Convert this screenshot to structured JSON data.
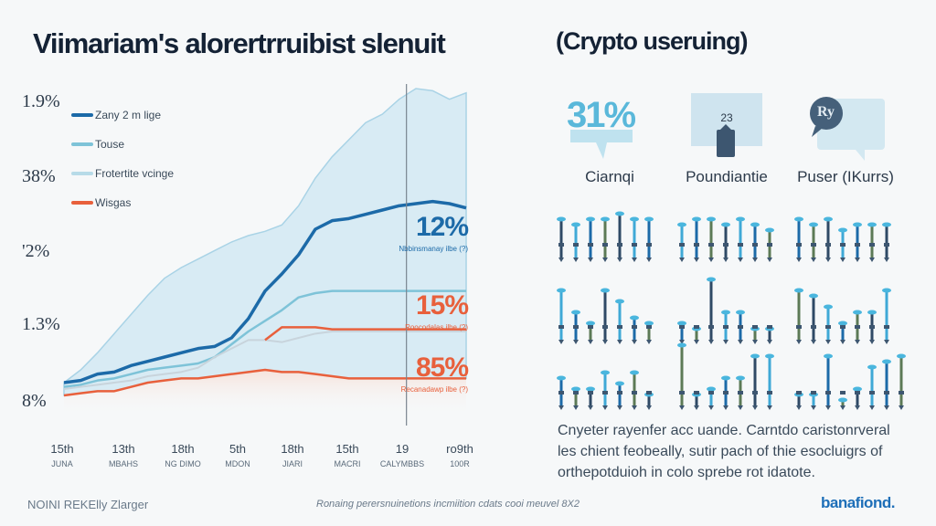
{
  "header": {
    "title": "Viimariam's alorertrruibist slenuit",
    "subtitle": "(Crypto useruing)"
  },
  "chart_data": {
    "type": "line",
    "title": "Viimariam's alorertrruibist slenuit",
    "xlabel": "",
    "ylabel": "",
    "y_tick_labels": [
      "1.9%",
      "38%",
      "'2%",
      "1.3%",
      "8%"
    ],
    "x_tick_labels": [
      {
        "day": "15th",
        "month": "JUNA"
      },
      {
        "day": "13th",
        "month": "MBAHS"
      },
      {
        "day": "18th",
        "month": "NG DIMO"
      },
      {
        "day": "5th",
        "month": "MDON"
      },
      {
        "day": "18th",
        "month": "JIARI"
      },
      {
        "day": "15th",
        "month": "MACRI"
      },
      {
        "day": "19",
        "month": "CALYMBBS"
      },
      {
        "day": "ro9th",
        "month": "100R"
      }
    ],
    "ylim": [
      0,
      100
    ],
    "grid": false,
    "legend_position": "top-left",
    "x": [
      0,
      1,
      2,
      3,
      4,
      5,
      6,
      7,
      8,
      9,
      10,
      11,
      12,
      13,
      14,
      15,
      16,
      17,
      18,
      19,
      20,
      21,
      22,
      23,
      24
    ],
    "series": [
      {
        "name": "Frotertite vcinge (band upper)",
        "color": "#a9d3e6",
        "values": [
          4,
          10,
          18,
          27,
          36,
          45,
          53,
          58,
          62,
          66,
          70,
          73,
          75,
          78,
          87,
          100,
          110,
          118,
          126,
          130,
          137,
          142,
          141,
          137,
          140
        ]
      },
      {
        "name": "Zany 2 m lige",
        "color": "#1c6aa8",
        "values": [
          4,
          5,
          8,
          9,
          12,
          14,
          16,
          18,
          20,
          21,
          25,
          34,
          47,
          55,
          64,
          76,
          80,
          81,
          83,
          85,
          87,
          88,
          89,
          88,
          86
        ]
      },
      {
        "name": "Touse",
        "color": "#7ec3d8",
        "values": [
          2,
          3,
          5,
          6,
          8,
          10,
          11,
          12,
          13,
          16,
          22,
          28,
          33,
          38,
          44,
          46,
          47,
          47,
          47,
          47,
          47,
          47,
          47,
          47,
          47
        ]
      },
      {
        "name": "Frotertite vcinge",
        "color": "#c8d4dc",
        "values": [
          1,
          2,
          3,
          4,
          5,
          7,
          8,
          9,
          11,
          16,
          20,
          24,
          24,
          23,
          25,
          27,
          28,
          28,
          28,
          28,
          28,
          28,
          28,
          28,
          28
        ]
      },
      {
        "name": "Wisgas",
        "color": "#e8603c",
        "values": [
          -2,
          -1,
          0,
          0,
          2,
          4,
          5,
          6,
          6,
          7,
          8,
          9,
          10,
          9,
          9,
          8,
          7,
          6,
          6,
          6,
          6,
          6,
          6,
          6,
          6
        ]
      },
      {
        "name": "Wisgas (upper)",
        "color": "#e8603c",
        "values": [
          null,
          null,
          null,
          null,
          null,
          null,
          null,
          null,
          null,
          null,
          null,
          null,
          24,
          30,
          30,
          30,
          29,
          29,
          29,
          29,
          29,
          29,
          29,
          29,
          29
        ]
      }
    ],
    "annotations": [
      {
        "value": "12%",
        "caption": "Nbbinsmanay ilbe (?)",
        "color": "#1c6aa8"
      },
      {
        "value": "15%",
        "caption": "Roocodalas ilbe (?)",
        "color": "#e8603c"
      },
      {
        "value": "85%",
        "caption": "Recanadawp ilbe (?)",
        "color": "#e8603c"
      }
    ],
    "marker_line_index": 20
  },
  "legend": [
    {
      "label": "Zany 2 m lige",
      "color": "#1c6aa8"
    },
    {
      "label": "Touse",
      "color": "#7ec3d8"
    },
    {
      "label": "Frotertite vcinge",
      "color": "#b7dbe8"
    },
    {
      "label": "Wisgas",
      "color": "#e8603c"
    }
  ],
  "stats": [
    {
      "value": "31%",
      "label": "Ciarnqi",
      "icon": "percent-speech-bubble-icon"
    },
    {
      "value": "23",
      "label": "Poundiantie",
      "icon": "document-bubble-icon"
    },
    {
      "value": "Ry",
      "label": "Puser (IKurrs)",
      "icon": "user-speech-bubble-icon"
    }
  ],
  "pictograph": {
    "groups": [
      [
        [
          7,
          6,
          7,
          7,
          8,
          7,
          7
        ],
        [
          9,
          5,
          3,
          9,
          7,
          4,
          3
        ],
        [
          5,
          3,
          3,
          6,
          4,
          6,
          2
        ]
      ],
      [
        [
          6,
          7,
          7,
          6,
          7,
          6,
          5
        ],
        [
          3,
          2,
          11,
          5,
          5,
          2,
          2
        ],
        [
          11,
          2,
          3,
          5,
          5,
          9,
          9
        ]
      ],
      [
        [
          7,
          6,
          7,
          5,
          6,
          6,
          6
        ],
        [
          9,
          8,
          6,
          3,
          5,
          5,
          9
        ],
        [
          2,
          2,
          9,
          1,
          3,
          7,
          8,
          9
        ]
      ]
    ],
    "colors": [
      "#2f4a66",
      "#3fa9d6",
      "#1c6aa8",
      "#5c7a56"
    ]
  },
  "description": "Cnyeter rayenfer acc uande. Carntdo caristonrveral les chient feobeally, sutir pach of thie esocluigrs of orthepotduioh in colo sprebe rot idatote.",
  "footer": {
    "left": "NOINI REKElly Zlarger",
    "middle": "Ronaing perersnuinetions incmiition cdats cooi meuvel 8X2",
    "brand": "banafiond."
  }
}
